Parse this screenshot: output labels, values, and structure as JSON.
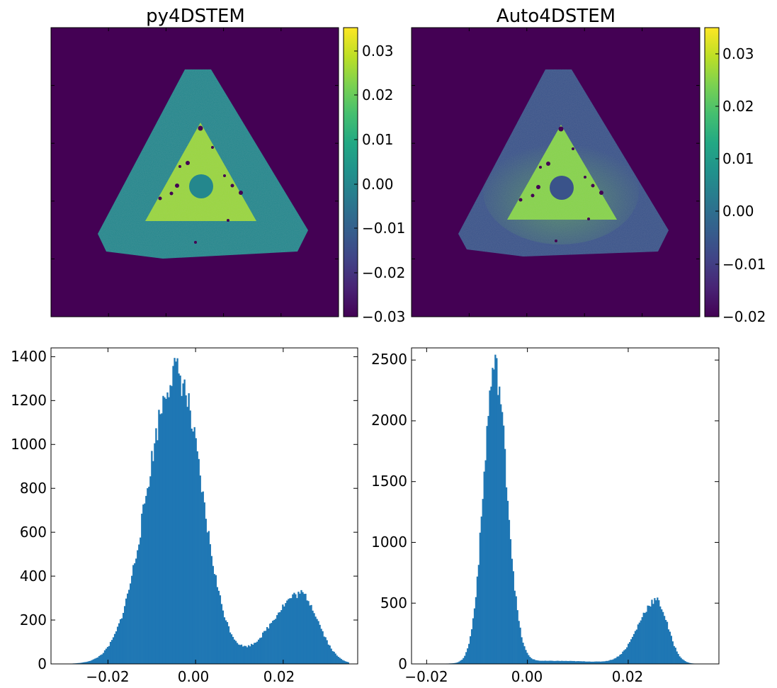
{
  "chart_data": [
    {
      "type": "heatmap",
      "title": "py4DSTEM",
      "colormap": "viridis",
      "colorbar": {
        "min": -0.03,
        "max": 0.035,
        "ticks": [
          "0.03",
          "0.02",
          "0.01",
          "0.00",
          "−0.01",
          "−0.02",
          "−0.03"
        ]
      },
      "background_value": -0.03,
      "outer_triangle_value": 0.0,
      "inner_triangle_value": 0.025,
      "grid": false
    },
    {
      "type": "heatmap",
      "title": "Auto4DSTEM",
      "colormap": "viridis",
      "colorbar": {
        "min": -0.02,
        "max": 0.035,
        "ticks": [
          "0.03",
          "0.02",
          "0.01",
          "0.00",
          "−0.01",
          "−0.02"
        ]
      },
      "background_value": -0.02,
      "outer_triangle_value": -0.006,
      "inner_triangle_value": 0.025,
      "grid": false
    },
    {
      "type": "bar",
      "title": "",
      "histogram": true,
      "xlim": [
        -0.033,
        0.037
      ],
      "ylim": [
        0,
        1440
      ],
      "xticks": [
        "−0.02",
        "0.00",
        "0.02"
      ],
      "yticks": [
        "0",
        "200",
        "400",
        "600",
        "800",
        "1000",
        "1200",
        "1400"
      ],
      "color": "#1f77b4",
      "bins": {
        "start": -0.03,
        "end": 0.035,
        "count": 200
      },
      "peaks": [
        {
          "center": -0.0045,
          "height": 1330,
          "sigma_left": 0.0065,
          "sigma_right": 0.0058
        },
        {
          "center": 0.024,
          "height": 320,
          "sigma_left": 0.0065,
          "sigma_right": 0.004
        }
      ]
    },
    {
      "type": "bar",
      "title": "",
      "histogram": true,
      "xlim": [
        -0.023,
        0.038
      ],
      "ylim": [
        0,
        2600
      ],
      "xticks": [
        "−0.02",
        "0.00",
        "0.02"
      ],
      "yticks": [
        "0",
        "500",
        "1000",
        "1500",
        "2000",
        "2500"
      ],
      "color": "#1f77b4",
      "bins": {
        "start": -0.02,
        "end": 0.035,
        "count": 200
      },
      "peaks": [
        {
          "center": -0.0065,
          "height": 2430,
          "sigma_left": 0.0022,
          "sigma_right": 0.0024
        },
        {
          "center": 0.0255,
          "height": 520,
          "sigma_left": 0.0035,
          "sigma_right": 0.0023
        },
        {
          "center": 0.005,
          "height": 25,
          "sigma_left": 0.01,
          "sigma_right": 0.01
        }
      ]
    }
  ]
}
